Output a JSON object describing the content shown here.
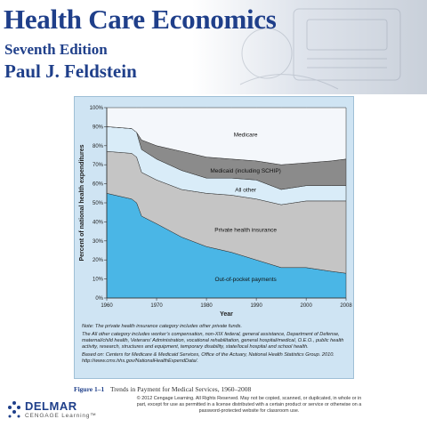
{
  "header": {
    "title": "Health Care Economics",
    "edition": "Seventh Edition",
    "author": "Paul J. Feldstein"
  },
  "chart_data": {
    "type": "area",
    "x": [
      1960,
      1965,
      1966,
      1967,
      1970,
      1975,
      1980,
      1985,
      1990,
      1995,
      2000,
      2005,
      2008
    ],
    "series": [
      {
        "name": "Out-of-pocket payments",
        "values": [
          55,
          52,
          50,
          43,
          39,
          32,
          27,
          24,
          20,
          16,
          16,
          14,
          13
        ]
      },
      {
        "name": "Private health insurance",
        "values": [
          22,
          24,
          24,
          23,
          23,
          25,
          28,
          30,
          32,
          33,
          35,
          37,
          38
        ]
      },
      {
        "name": "All other",
        "values": [
          13,
          13,
          13,
          12,
          11,
          10,
          8,
          9,
          10,
          8,
          8,
          8,
          8
        ]
      },
      {
        "name": "Medicaid (including SCHIP)",
        "values": [
          0,
          0,
          0,
          5,
          7,
          10,
          11,
          10,
          10,
          13,
          12,
          13,
          14
        ]
      },
      {
        "name": "Medicare",
        "values": [
          10,
          11,
          13,
          17,
          20,
          23,
          26,
          27,
          28,
          30,
          29,
          28,
          27
        ]
      }
    ],
    "ylabel": "Percent of national health expenditures",
    "xlabel": "Year",
    "xticks": [
      "1960",
      "1970",
      "1980",
      "1990",
      "2000",
      "2008"
    ],
    "yticks": [
      "0%",
      "10%",
      "20%",
      "30%",
      "40%",
      "50%",
      "60%",
      "70%",
      "80%",
      "90%",
      "100%"
    ],
    "xlim": [
      1960,
      2008
    ],
    "ylim": [
      0,
      100
    ],
    "grid": false,
    "colors": [
      "#4ab6e6",
      "#c5c5c5",
      "#d9ecf8",
      "#8b8b8b",
      "#f4f7fb"
    ]
  },
  "notes": {
    "note": "Note: The private health insurance category includes other private funds.",
    "other": "The All other category includes worker’s compensation, non-XIX federal, general assistance, Department of Defense, maternal/child health, Veterans’ Administration, vocational rehabilitation, general hospital/medical, O.E.O., public health activity, research, structures and equipment, temporary disability, state/local hospital and school health.",
    "source": "Based on: Centers for Medicare & Medicaid Services, Office of the Actuary, National Health Statistics Group. 2010. http://www.cms.hhs.gov/NationalHealthExpendData/."
  },
  "caption": {
    "number": "Figure 1–1",
    "text": "Trends in Payment for Medical Services, 1960–2008"
  },
  "copyright": "© 2012 Cengage Learning. All Rights Reserved. May not be copied, scanned, or duplicated, in whole or in part, except for use as permitted in a license distributed with a certain product or service or otherwise on a password-protected website for classroom use.",
  "logo": {
    "top": "DELMAR",
    "bottom": "CENGAGE Learning™"
  }
}
